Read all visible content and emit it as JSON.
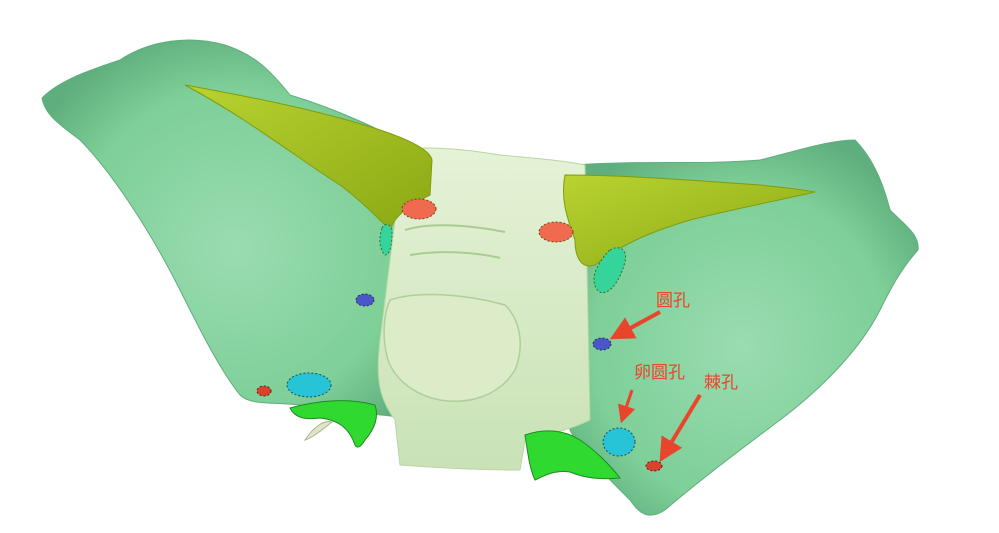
{
  "labels": {
    "foramen_rotundum": "圆孔",
    "foramen_ovale": "卵圆孔",
    "foramen_spinosum": "棘孔"
  },
  "colors": {
    "greater_wing": "#7ecf98",
    "greater_wing_shadow": "#5fae7d",
    "body": "#d9ecc7",
    "body_shadow": "#b7d6a6",
    "lesser_wing": "#a9c522",
    "lesser_wing_dark": "#8aa814",
    "pterygoid": "#2fd92f",
    "optic_canal": "#f06a4f",
    "superior_orbital_fissure": "#35d49a",
    "rotundum": "#4b56c8",
    "ovale": "#27c3d6",
    "spinosum": "#d9422c",
    "annotation": "#e8452c"
  }
}
